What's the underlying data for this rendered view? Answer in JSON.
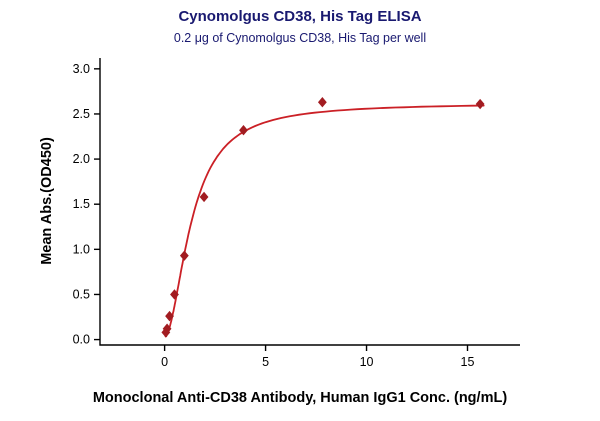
{
  "chart_data": {
    "type": "scatter",
    "title": "Cynomolgus CD38, His Tag ELISA",
    "subtitle": "0.2 μg of Cynomolgus CD38, His Tag per well",
    "xlabel": "Monoclonal Anti-CD38 Antibody, Human IgG1 Conc. (ng/mL)",
    "ylabel": "Mean Abs.(OD450)",
    "x": [
      0.061,
      0.122,
      0.244,
      0.488,
      0.977,
      1.953,
      3.906,
      7.813,
      15.625
    ],
    "y": [
      0.08,
      0.12,
      0.26,
      0.5,
      0.93,
      1.58,
      2.32,
      2.63,
      2.61
    ],
    "xticks": [
      0,
      5,
      10,
      15
    ],
    "xtick_labels": [
      "0",
      "5",
      "10",
      "15"
    ],
    "yticks": [
      0,
      0.5,
      1,
      1.5,
      2,
      2.5,
      3
    ],
    "ytick_labels": [
      "0.0",
      "0.5",
      "1.0",
      "1.5",
      "2.0",
      "2.5",
      "3.0"
    ],
    "xlim": [
      -3.2,
      17.6
    ],
    "ylim": [
      -0.06,
      3.12
    ],
    "grid": false,
    "legend": "none",
    "marker": "diamond",
    "fit_curve": {
      "model": "4PL",
      "bottom": 0.03,
      "top": 2.62,
      "ec50": 1.35,
      "hill": 1.85,
      "x_start": 0.05,
      "x_end": 15.8
    },
    "colors": {
      "title": "#191970",
      "axis": "#000000",
      "tick_label": "#000000",
      "line": "#cb2026",
      "marker": "#a21c21"
    }
  }
}
